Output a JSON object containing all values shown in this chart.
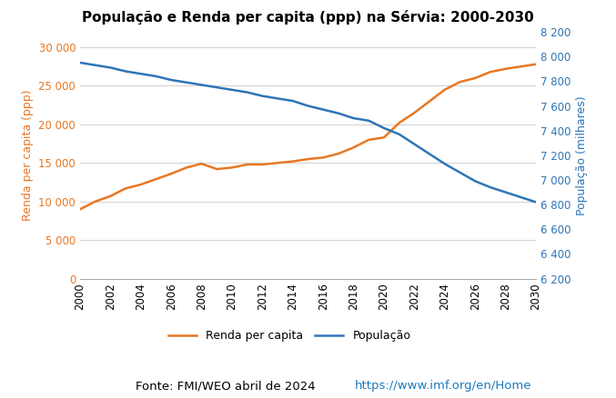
{
  "title": "População e Renda per capita (ppp) na Sérvia: 2000-2030",
  "years": [
    2000,
    2001,
    2002,
    2003,
    2004,
    2005,
    2006,
    2007,
    2008,
    2009,
    2010,
    2011,
    2012,
    2013,
    2014,
    2015,
    2016,
    2017,
    2018,
    2019,
    2020,
    2021,
    2022,
    2023,
    2024,
    2025,
    2026,
    2027,
    2028,
    2029,
    2030
  ],
  "renda": [
    9000,
    10000,
    10700,
    11700,
    12200,
    12900,
    13600,
    14400,
    14900,
    14200,
    14400,
    14800,
    14800,
    15000,
    15200,
    15500,
    15700,
    16200,
    17000,
    18000,
    18300,
    20200,
    21500,
    23000,
    24500,
    25500,
    26000,
    26800,
    27200,
    27500,
    27800
  ],
  "populacao": [
    7950,
    7930,
    7910,
    7880,
    7860,
    7840,
    7810,
    7790,
    7770,
    7750,
    7730,
    7710,
    7680,
    7660,
    7640,
    7600,
    7570,
    7540,
    7500,
    7480,
    7420,
    7370,
    7290,
    7210,
    7130,
    7060,
    6990,
    6940,
    6900,
    6860,
    6820
  ],
  "left_ylim": [
    0,
    32000
  ],
  "left_yticks": [
    0,
    5000,
    10000,
    15000,
    20000,
    25000,
    30000
  ],
  "right_ylim": [
    6200,
    8200
  ],
  "right_yticks": [
    6200,
    6400,
    6600,
    6800,
    7000,
    7200,
    7400,
    7600,
    7800,
    8000,
    8200
  ],
  "left_ylabel": "Renda per capita (ppp)",
  "right_ylabel": "População (milhares)",
  "renda_color": "#E87722",
  "pop_color": "#2E75B6",
  "legend_renda": "Renda per capita",
  "legend_pop": "População",
  "fonte_text": "Fonte: FMI/WEO abril de 2024 ",
  "fonte_link": "https://www.imf.org/en/Home",
  "background_color": "#ffffff",
  "plot_bg_color": "#ffffff",
  "grid_color": "#d0d0d0",
  "title_fontsize": 11,
  "label_fontsize": 9,
  "tick_fontsize": 8.5,
  "legend_fontsize": 9,
  "fonte_fontsize": 9.5
}
